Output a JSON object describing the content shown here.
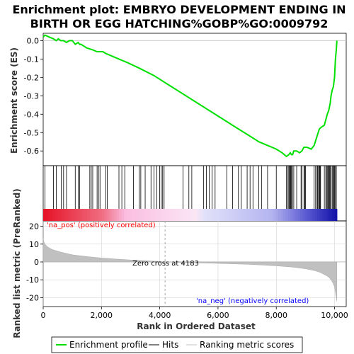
{
  "title_line1": "Enrichment plot: EMBRYO DEVELOPMENT ENDING IN",
  "title_line2": "BIRTH OR EGG HATCHING%GOBP%GO:0009792",
  "colors": {
    "es_line": "#00e000",
    "hit": "#000000",
    "metric_fill": "#c0c0c0",
    "pos_label": "#ff0000",
    "neg_label": "#0000ff",
    "zero_cross_line": "#aaaaaa",
    "gridline": "#cccccc"
  },
  "chart_data": [
    {
      "type": "line",
      "name": "enrichment-profile",
      "ylabel": "Enrichment score (ES)",
      "xlim": [
        0,
        10400
      ],
      "ylim": [
        -0.68,
        0.04
      ],
      "yticks": [
        0.0,
        -0.1,
        -0.2,
        -0.3,
        -0.4,
        -0.5,
        -0.6
      ],
      "ytick_labels": [
        "0.0",
        "-0.1",
        "-0.2",
        "-0.3",
        "-0.4",
        "-0.5",
        "-0.6"
      ],
      "x": [
        0,
        60,
        200,
        350,
        450,
        520,
        600,
        700,
        800,
        900,
        1000,
        1100,
        1200,
        1250,
        1300,
        1500,
        1700,
        1850,
        1950,
        2050,
        2150,
        2300,
        2600,
        2900,
        3300,
        3800,
        4200,
        4700,
        5200,
        5700,
        6200,
        6700,
        7100,
        7400,
        7700,
        8000,
        8200,
        8350,
        8430,
        8480,
        8520,
        8560,
        8600,
        8700,
        8800,
        8880,
        8950,
        9050,
        9200,
        9300,
        9400,
        9480,
        9550,
        9650,
        9750,
        9800,
        9850,
        9880,
        9920,
        9960,
        10000,
        10030,
        10060,
        10080
      ],
      "y": [
        0.02,
        0.03,
        0.02,
        0.01,
        0.0,
        0.01,
        0.0,
        0.0,
        -0.01,
        0.0,
        0.0,
        -0.02,
        -0.01,
        -0.02,
        -0.02,
        -0.04,
        -0.05,
        -0.06,
        -0.06,
        -0.06,
        -0.07,
        -0.08,
        -0.1,
        -0.12,
        -0.15,
        -0.19,
        -0.23,
        -0.28,
        -0.33,
        -0.38,
        -0.43,
        -0.48,
        -0.52,
        -0.55,
        -0.57,
        -0.59,
        -0.61,
        -0.63,
        -0.62,
        -0.61,
        -0.62,
        -0.62,
        -0.6,
        -0.6,
        -0.61,
        -0.6,
        -0.58,
        -0.58,
        -0.59,
        -0.57,
        -0.52,
        -0.48,
        -0.47,
        -0.46,
        -0.4,
        -0.38,
        -0.34,
        -0.3,
        -0.27,
        -0.25,
        -0.2,
        -0.1,
        -0.05,
        0.0
      ]
    },
    {
      "type": "scatter",
      "name": "hits",
      "x": [
        60,
        350,
        450,
        620,
        700,
        800,
        1100,
        1200,
        1250,
        1600,
        1650,
        1700,
        1850,
        1900,
        1950,
        2150,
        2200,
        2600,
        2700,
        2800,
        3100,
        3300,
        3350,
        3500,
        3700,
        3800,
        3900,
        4000,
        4050,
        4100,
        4150,
        4800,
        5000,
        5100,
        5500,
        5600,
        5700,
        5800,
        5900,
        6300,
        6500,
        6700,
        6800,
        7000,
        7100,
        7200,
        7400,
        7500,
        7700,
        8000,
        8350,
        8400,
        8430,
        8450,
        8480,
        8500,
        8520,
        8560,
        8600,
        8700,
        8850,
        8880,
        8950,
        8980,
        9000,
        9300,
        9350,
        9400,
        9420,
        9450,
        9480,
        9500,
        9520,
        9650,
        9700,
        9720,
        9750,
        9780,
        9800,
        9830,
        9860,
        9880,
        9920,
        9950,
        9980,
        10000,
        10030,
        10060
      ]
    },
    {
      "type": "area",
      "name": "ranked-list-metric",
      "ylabel": "Ranked list metric (PreRanked)",
      "xlabel": "Rank in Ordered Dataset",
      "xlim": [
        0,
        10400
      ],
      "ylim": [
        -25,
        23
      ],
      "yticks": [
        20,
        10,
        0,
        -10,
        -20
      ],
      "ytick_labels": [
        "20",
        "10",
        "0",
        "-10",
        "-20"
      ],
      "xticks": [
        0,
        2000,
        4000,
        6000,
        8000,
        10000
      ],
      "xtick_labels": [
        "0",
        "2,000",
        "4,000",
        "6,000",
        "8,000",
        "10,000"
      ],
      "x": [
        0,
        20,
        60,
        150,
        300,
        600,
        1000,
        1500,
        2000,
        2500,
        3000,
        3500,
        4000,
        4183,
        5000,
        6000,
        7000,
        7500,
        8000,
        8500,
        9000,
        9300,
        9500,
        9700,
        9800,
        9900,
        9950,
        10000,
        10030,
        10060,
        10080
      ],
      "y": [
        13,
        11.5,
        10,
        8.5,
        7,
        5.5,
        4,
        3,
        2.2,
        1.6,
        1.1,
        0.7,
        0.3,
        0.0,
        -0.4,
        -0.8,
        -1.3,
        -1.7,
        -2.2,
        -2.8,
        -3.8,
        -4.8,
        -5.8,
        -7.5,
        -8.5,
        -10.5,
        -12,
        -14,
        -17,
        -20,
        -22
      ]
    }
  ],
  "labels": {
    "na_pos": "'na_pos' (positively correlated)",
    "na_neg": "'na_neg' (negatively correlated)",
    "zero_cross": "Zero cross at 4183"
  },
  "zero_cross_x": 4183,
  "legend": {
    "items": [
      {
        "label": "Enrichment profile"
      },
      {
        "label": "Hits"
      },
      {
        "label": "Ranking metric scores"
      }
    ]
  }
}
